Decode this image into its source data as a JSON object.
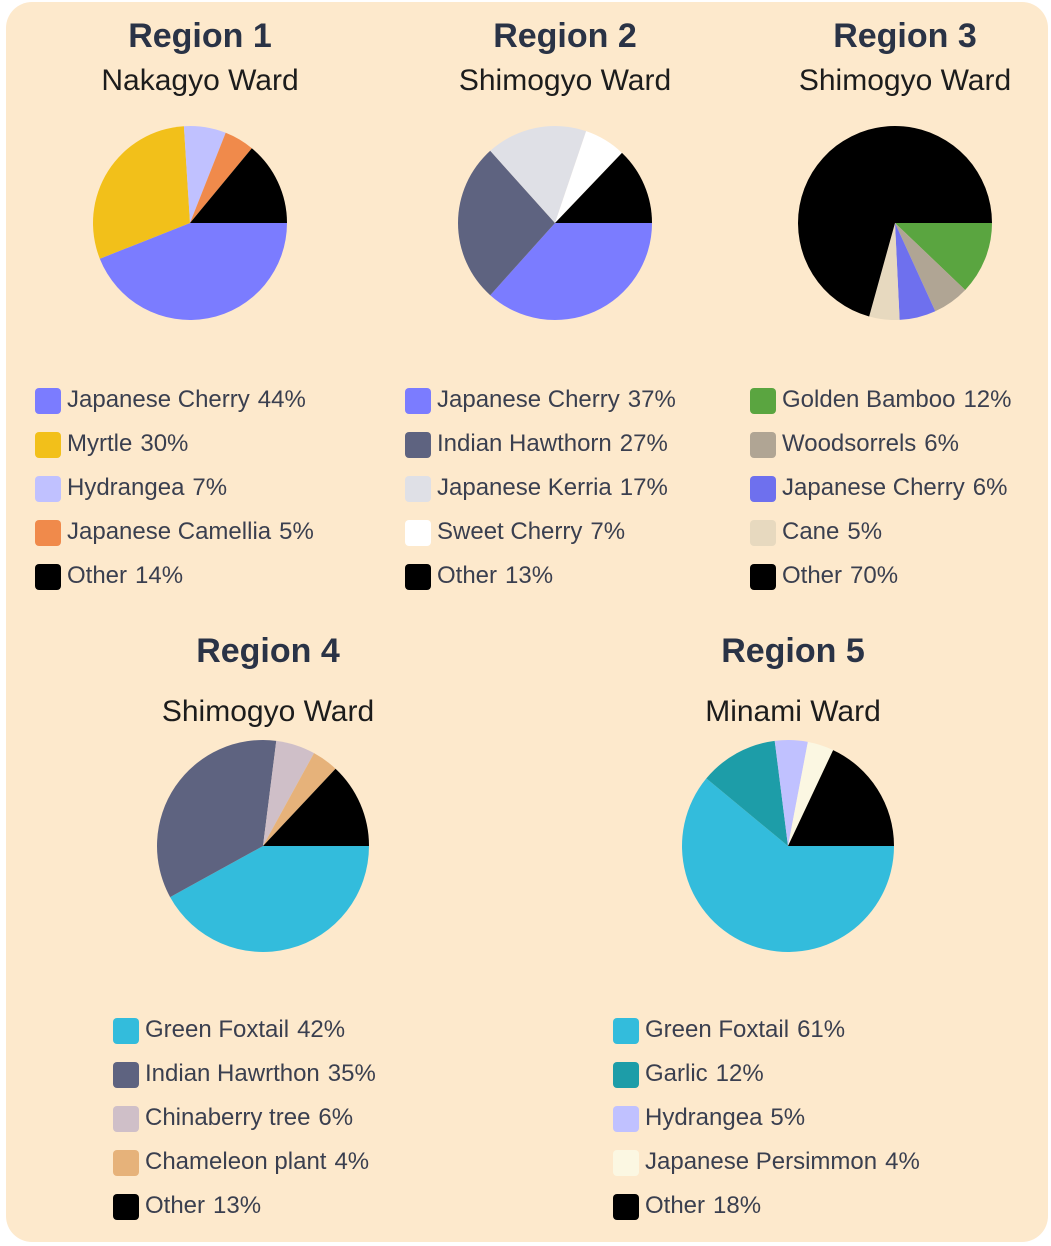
{
  "chart_data": [
    {
      "type": "pie",
      "title": "Region 1",
      "subtitle": "Nakagyo Ward",
      "categories": [
        "Japanese Cherry",
        "Myrtle",
        "Hydrangea",
        "Japanese Camellia",
        "Other"
      ],
      "values": [
        44,
        30,
        7,
        5,
        14
      ],
      "value_labels": [
        "44%",
        "30%",
        "7%",
        "5%",
        "14%"
      ],
      "colors": [
        "#7b7cff",
        "#f2c01a",
        "#c0c1ff",
        "#f08a4b",
        "#000000"
      ]
    },
    {
      "type": "pie",
      "title": "Region 2",
      "subtitle": "Shimogyo Ward",
      "categories": [
        "Japanese Cherry",
        "Indian Hawthorn",
        "Japanese Kerria",
        "Sweet Cherry",
        "Other"
      ],
      "values": [
        37,
        27,
        17,
        7,
        13
      ],
      "value_labels": [
        "37%",
        "27%",
        "17%",
        "7%",
        "13%"
      ],
      "colors": [
        "#7b7cff",
        "#5e6380",
        "#dfe0e6",
        "#ffffff",
        "#000000"
      ]
    },
    {
      "type": "pie",
      "title": "Region 3",
      "subtitle": "Shimogyo Ward",
      "categories": [
        "Golden Bamboo",
        "Woodsorrels",
        "Japanese Cherry",
        "Cane",
        "Other"
      ],
      "values": [
        12,
        6,
        6,
        5,
        70
      ],
      "value_labels": [
        "12%",
        "6%",
        "6%",
        "5%",
        "70%"
      ],
      "colors": [
        "#5aa540",
        "#b0a594",
        "#6e70ee",
        "#e7d9bf",
        "#000000"
      ]
    },
    {
      "type": "pie",
      "title": "Region 4",
      "subtitle": "Shimogyo Ward",
      "categories": [
        "Green Foxtail",
        "Indian Hawrthon",
        "Chinaberry tree",
        "Chameleon plant",
        "Other"
      ],
      "values": [
        42,
        35,
        6,
        4,
        13
      ],
      "value_labels": [
        "42%",
        "35%",
        "6%",
        "4%",
        "13%"
      ],
      "colors": [
        "#33bcdc",
        "#5e6380",
        "#cfbfc8",
        "#e6b27a",
        "#000000"
      ]
    },
    {
      "type": "pie",
      "title": "Region 5",
      "subtitle": "Minami Ward",
      "categories": [
        "Green Foxtail",
        "Garlic",
        "Hydrangea",
        "Japanese Persimmon",
        "Other"
      ],
      "values": [
        61,
        12,
        5,
        4,
        18
      ],
      "value_labels": [
        "61%",
        "12%",
        "5%",
        "4%",
        "18%"
      ],
      "colors": [
        "#33bcdc",
        "#1d9da8",
        "#c0c1ff",
        "#fbf7e2",
        "#000000"
      ]
    }
  ]
}
